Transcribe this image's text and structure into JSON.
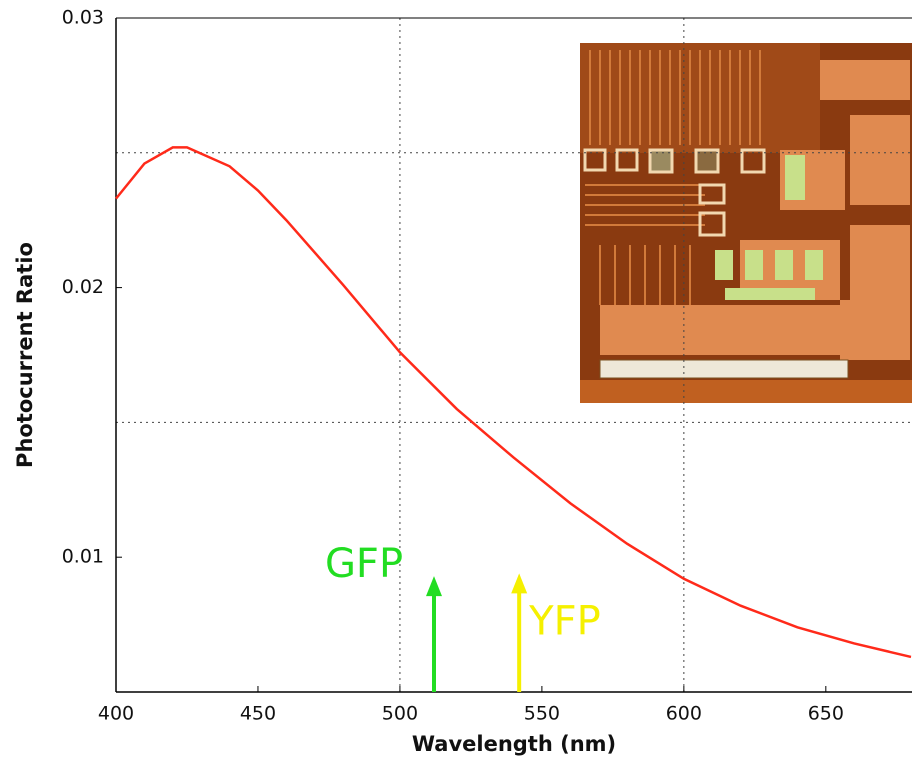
{
  "chart_data": {
    "type": "line",
    "x_label": "Wavelength (nm)",
    "y_label": "Photocurrent Ratio",
    "x": [
      400,
      410,
      420,
      425,
      440,
      450,
      460,
      480,
      500,
      520,
      540,
      560,
      580,
      600,
      620,
      640,
      660,
      680
    ],
    "series": [
      {
        "color": "#ff2a1a",
        "values": [
          0.0233,
          0.0246,
          0.0252,
          0.0252,
          0.0245,
          0.0236,
          0.0225,
          0.0201,
          0.0176,
          0.0155,
          0.0137,
          0.012,
          0.0105,
          0.0092,
          0.0082,
          0.0074,
          0.0068,
          0.0063
        ]
      }
    ],
    "xlim": [
      400,
      680
    ],
    "xticks": [
      400,
      450,
      500,
      550,
      600,
      650
    ],
    "ylim": [
      0.005,
      0.03
    ],
    "yticks": [
      0.01,
      0.02,
      0.03
    ],
    "xgrid": [
      500,
      600
    ],
    "ygrid": [
      0.015,
      0.025
    ],
    "annotations": [
      {
        "text": "GFP",
        "color": "#22dd22",
        "x": 512,
        "y": 0.0093
      },
      {
        "text": "YFP",
        "color": "#f5f000",
        "x": 542,
        "y": 0.0094
      }
    ]
  }
}
